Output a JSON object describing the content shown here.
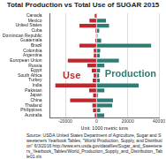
{
  "chart_data": {
    "type": "bar",
    "orientation": "horizontal",
    "stacked": true,
    "grid": true,
    "title": "Total Production vs Total Use of SUGAR 2015",
    "x_label": "Unit: 1000 metric tons",
    "source": "Source: USDA United States Department of Agriculture, Sugar and Sweeteners Yearbook Tables, \"World Production, Supply, and Distribution\" 6/3/2016 http://www.ers.usda.gov/datafiles/Sugar_and_Sweeteners_Yearbook_Tables/World_Production_Supply_and_Distribution_Table01.xls",
    "categories": [
      "Canada",
      "Mexico",
      "United States",
      "Cuba",
      "Dominican Republic",
      "Guatemala",
      "Brazil",
      "Colombia",
      "Argentina",
      "European Union",
      "Russia",
      "Egypt",
      "South Africa",
      "Turkey",
      "India",
      "Pakistan",
      "Japan",
      "China",
      "Thailand",
      "Philippines",
      "Australia"
    ],
    "series": [
      {
        "name": "Use",
        "color": "#c0262d",
        "values": [
          -1200,
          -4600,
          -11000,
          -700,
          -400,
          -850,
          -11000,
          -1800,
          -1800,
          -18500,
          -5900,
          -3100,
          -1900,
          -2500,
          -26500,
          -4800,
          -2200,
          -17000,
          -2700,
          -2300,
          -1200
        ]
      },
      {
        "name": "Production",
        "color": "#2e7d74",
        "values": [
          100,
          6000,
          8000,
          1700,
          550,
          2900,
          35000,
          2300,
          2000,
          14300,
          5000,
          2200,
          1600,
          2000,
          27000,
          5000,
          800,
          10500,
          10000,
          2300,
          4900
        ]
      }
    ],
    "xlim": [
      -30000,
      40000
    ],
    "xticks": [
      -20000,
      0,
      20000,
      40000
    ],
    "legend": "none"
  }
}
